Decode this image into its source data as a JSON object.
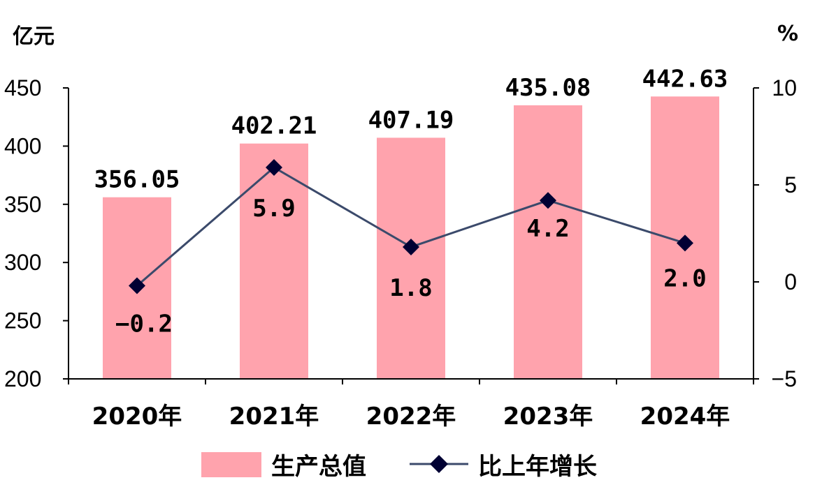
{
  "chart_data": {
    "type": "bar+line",
    "categories": [
      "2020年",
      "2021年",
      "2022年",
      "2023年",
      "2024年"
    ],
    "series": [
      {
        "name": "生产总值",
        "type": "bar",
        "axis": "left",
        "values": [
          356.05,
          402.21,
          407.19,
          435.08,
          442.63
        ],
        "labels": [
          "356.05",
          "402.21",
          "407.19",
          "435.08",
          "442.63"
        ]
      },
      {
        "name": "比上年增长",
        "type": "line",
        "axis": "right",
        "values": [
          -0.2,
          5.9,
          1.8,
          4.2,
          2.0
        ],
        "labels": [
          "-0.2",
          "5.9",
          "1.8",
          "4.2",
          "2.0"
        ]
      }
    ],
    "left_axis": {
      "unit": "亿元",
      "min": 200,
      "max": 450,
      "ticks": [
        "200",
        "250",
        "300",
        "350",
        "400",
        "450"
      ]
    },
    "right_axis": {
      "unit": "%",
      "min": -5,
      "max": 10,
      "ticks": [
        "-5",
        "0",
        "5",
        "10"
      ]
    },
    "legend_position": "bottom",
    "grid": false,
    "colors": {
      "bar": "#ffa3ad",
      "line": "#3b4a6b",
      "marker": "#000033"
    }
  }
}
